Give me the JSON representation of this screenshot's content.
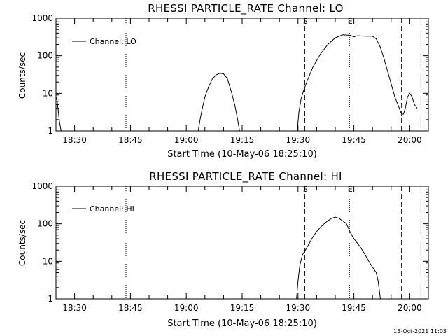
{
  "window": {
    "timestamp": "15-Oct-2021 11:03"
  },
  "chart_data": [
    {
      "type": "line",
      "title": "RHESSI PARTICLE_RATE Channel: LO",
      "xlabel": "Start Time (10-May-06 18:25:10)",
      "ylabel": "Counts/sec",
      "x_unit": "minutes after 18:25:10",
      "xlim": [
        0,
        100
      ],
      "ylim": [
        1,
        1000
      ],
      "yscale": "log",
      "x_ticks": [
        {
          "x": 5,
          "label": "18:30"
        },
        {
          "x": 20,
          "label": "18:45"
        },
        {
          "x": 35,
          "label": "19:00"
        },
        {
          "x": 50,
          "label": "19:15"
        },
        {
          "x": 65,
          "label": "19:30"
        },
        {
          "x": 80,
          "label": "19:45"
        },
        {
          "x": 95,
          "label": "20:00"
        }
      ],
      "y_ticks": [
        {
          "y": 1,
          "label": "1"
        },
        {
          "y": 10,
          "label": "10"
        },
        {
          "y": 100,
          "label": "100"
        },
        {
          "y": 1000,
          "label": "1000"
        }
      ],
      "legend": "top-left",
      "grid": false,
      "markers": [
        {
          "x": 66.8,
          "label": "S",
          "style": "dashed"
        },
        {
          "x": 78.8,
          "label": "E",
          "style": "dotted"
        },
        {
          "x": 92.8,
          "label": "",
          "style": "dashed"
        },
        {
          "x": 18.8,
          "label": "",
          "style": "dotted"
        },
        {
          "x": 98.0,
          "label": "",
          "style": "dotted"
        }
      ],
      "series": [
        {
          "name": "Channel: LO",
          "segments": [
            [
              [
                0,
                8
              ],
              [
                0.3,
                6.5
              ],
              [
                0.6,
                3.5
              ],
              [
                1,
                1.6
              ],
              [
                1.4,
                1
              ]
            ],
            [
              [
                38.2,
                1
              ],
              [
                38.7,
                2
              ],
              [
                39.3,
                4
              ],
              [
                40,
                8
              ],
              [
                41,
                15
              ],
              [
                42,
                24
              ],
              [
                43,
                31
              ],
              [
                44,
                34
              ],
              [
                45,
                33
              ],
              [
                46,
                25
              ],
              [
                47,
                12
              ],
              [
                48,
                5
              ],
              [
                48.8,
                2
              ],
              [
                49.3,
                1
              ]
            ],
            [
              [
                64.8,
                1
              ],
              [
                65.2,
                3
              ],
              [
                65.8,
                7
              ],
              [
                66.5,
                12
              ],
              [
                67.5,
                22
              ],
              [
                69,
                50
              ],
              [
                71,
                110
              ],
              [
                73,
                200
              ],
              [
                75,
                300
              ],
              [
                77,
                360
              ],
              [
                79,
                350
              ],
              [
                80,
                320
              ],
              [
                81,
                340
              ],
              [
                83,
                330
              ],
              [
                85,
                330
              ],
              [
                86,
                280
              ],
              [
                87,
                180
              ],
              [
                88,
                90
              ],
              [
                89,
                40
              ],
              [
                90,
                18
              ],
              [
                91,
                8
              ],
              [
                92,
                4.5
              ],
              [
                92.8,
                2.8
              ],
              [
                93.3,
                2.8
              ],
              [
                93.8,
                4
              ],
              [
                94.4,
                8
              ],
              [
                95,
                10
              ],
              [
                95.6,
                8
              ],
              [
                96.3,
                5
              ],
              [
                97,
                4
              ]
            ]
          ]
        }
      ]
    },
    {
      "type": "line",
      "title": "RHESSI PARTICLE_RATE Channel: HI",
      "xlabel": "Start Time (10-May-06 18:25:10)",
      "ylabel": "Counts/sec",
      "x_unit": "minutes after 18:25:10",
      "xlim": [
        0,
        100
      ],
      "ylim": [
        1,
        1000
      ],
      "yscale": "log",
      "x_ticks": [
        {
          "x": 5,
          "label": "18:30"
        },
        {
          "x": 20,
          "label": "18:45"
        },
        {
          "x": 35,
          "label": "19:00"
        },
        {
          "x": 50,
          "label": "19:15"
        },
        {
          "x": 65,
          "label": "19:30"
        },
        {
          "x": 80,
          "label": "19:45"
        },
        {
          "x": 95,
          "label": "20:00"
        }
      ],
      "y_ticks": [
        {
          "y": 1,
          "label": "1"
        },
        {
          "y": 10,
          "label": "10"
        },
        {
          "y": 100,
          "label": "100"
        },
        {
          "y": 1000,
          "label": "1000"
        }
      ],
      "legend": "top-left",
      "grid": false,
      "markers": [
        {
          "x": 66.8,
          "label": "S",
          "style": "dashed"
        },
        {
          "x": 78.8,
          "label": "E",
          "style": "dotted"
        },
        {
          "x": 92.8,
          "label": "",
          "style": "dashed"
        },
        {
          "x": 18.8,
          "label": "",
          "style": "dotted"
        },
        {
          "x": 98.0,
          "label": "",
          "style": "dotted"
        }
      ],
      "series": [
        {
          "name": "Channel: HI",
          "segments": [
            [
              [
                64.6,
                1
              ],
              [
                65,
                3
              ],
              [
                65.5,
                8
              ],
              [
                66.2,
                15
              ],
              [
                67,
                20
              ],
              [
                68,
                30
              ],
              [
                69,
                45
              ],
              [
                70,
                62
              ],
              [
                71,
                80
              ],
              [
                72,
                100
              ],
              [
                73,
                120
              ],
              [
                74,
                140
              ],
              [
                75,
                150
              ],
              [
                76,
                140
              ],
              [
                77,
                120
              ],
              [
                78,
                100
              ],
              [
                79,
                60
              ],
              [
                80,
                40
              ],
              [
                81,
                30
              ],
              [
                82,
                22
              ],
              [
                83,
                15
              ],
              [
                84,
                10
              ],
              [
                85,
                7
              ],
              [
                86,
                5
              ],
              [
                86.5,
                3
              ],
              [
                86.9,
                1.5
              ],
              [
                87.1,
                1
              ]
            ]
          ]
        }
      ]
    }
  ]
}
